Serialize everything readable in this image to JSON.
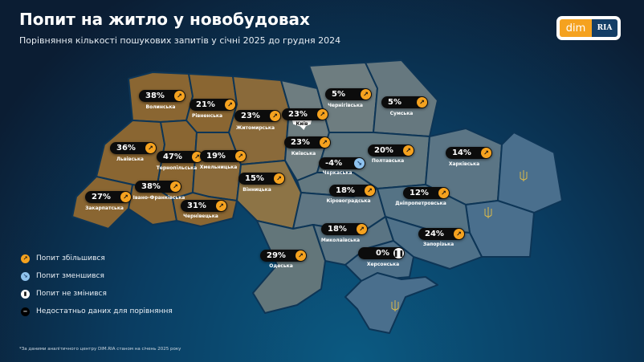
{
  "header": {
    "title": "Попит на житло у новобудовах",
    "subtitle": "Порівняння кількості пошукових запитів у січні 2025 до грудня 2024"
  },
  "logo": {
    "left": "dim",
    "right": "RIA"
  },
  "colors": {
    "increase": "#f5a21f",
    "decrease": "#8fc3ee",
    "nochange": "#ffffff",
    "nodata": "#000000",
    "west_regions": "#8a6a3a",
    "east_regions": "#607c8c"
  },
  "regions": [
    {
      "name": "Волинська",
      "value": "38%",
      "trend": "increase"
    },
    {
      "name": "Рівненська",
      "value": "21%",
      "trend": "increase"
    },
    {
      "name": "Житомирська",
      "value": "23%",
      "trend": "increase"
    },
    {
      "name": "Київ",
      "value": "23%",
      "trend": "increase"
    },
    {
      "name": "Київська",
      "value": "23%",
      "trend": "increase"
    },
    {
      "name": "Чернігівська",
      "value": "5%",
      "trend": "increase"
    },
    {
      "name": "Сумська",
      "value": "5%",
      "trend": "increase"
    },
    {
      "name": "Львівська",
      "value": "36%",
      "trend": "increase"
    },
    {
      "name": "Тернопільська",
      "value": "47%",
      "trend": "increase"
    },
    {
      "name": "Хмельницька",
      "value": "19%",
      "trend": "increase"
    },
    {
      "name": "Вінницька",
      "value": "15%",
      "trend": "increase"
    },
    {
      "name": "Черкаська",
      "value": "-4%",
      "trend": "decrease"
    },
    {
      "name": "Полтавська",
      "value": "20%",
      "trend": "increase"
    },
    {
      "name": "Харківська",
      "value": "14%",
      "trend": "increase"
    },
    {
      "name": "Кіровоградська",
      "value": "18%",
      "trend": "increase"
    },
    {
      "name": "Дніпропетровська",
      "value": "12%",
      "trend": "increase"
    },
    {
      "name": "Івано-Франківська",
      "value": "38%",
      "trend": "increase"
    },
    {
      "name": "Закарпатська",
      "value": "27%",
      "trend": "increase"
    },
    {
      "name": "Чернівецька",
      "value": "31%",
      "trend": "increase"
    },
    {
      "name": "Миколаївська",
      "value": "18%",
      "trend": "increase"
    },
    {
      "name": "Запорізька",
      "value": "24%",
      "trend": "increase"
    },
    {
      "name": "Одеська",
      "value": "29%",
      "trend": "increase"
    },
    {
      "name": "Херсонська",
      "value": "0%",
      "trend": "nochange"
    }
  ],
  "legend": [
    {
      "label": "Попит збільшився",
      "icon": "arrow-up-right-icon"
    },
    {
      "label": "Попит зменшився",
      "icon": "arrow-down-right-icon"
    },
    {
      "label": "Попит не змінився",
      "icon": "pause-icon"
    },
    {
      "label": "Недостатньо даних для порівняння",
      "icon": "minus-icon"
    }
  ],
  "footnote": "*За даними аналітичного центру DIM.RIA станом на січень 2025 року"
}
